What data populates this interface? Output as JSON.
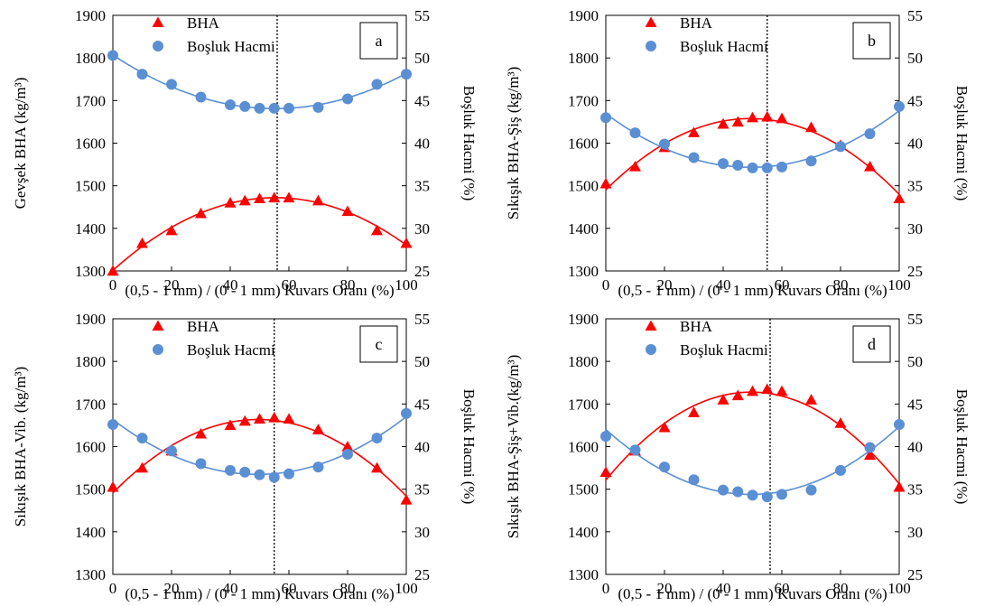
{
  "colors": {
    "bha": "#ff0000",
    "bosluk": "#5b8fd4",
    "axis": "#000000"
  },
  "chart_data": [
    {
      "type": "scatter",
      "panel_label": "a",
      "ylabel": "Gevşek BHA (kg/m³)",
      "y2label": "Boşluk Hacmi (%)",
      "xlabel": "(0,5 - 1 mm) / (0 - 1 mm) Kuvars Oranı (%)",
      "xlim": [
        0,
        100
      ],
      "ylim": [
        1300,
        1900
      ],
      "y2lim": [
        25,
        55
      ],
      "x_ticks": [
        "0",
        "20",
        "40",
        "60",
        "80",
        "100"
      ],
      "y_ticks": [
        "1300",
        "1400",
        "1500",
        "1600",
        "1700",
        "1800",
        "1900"
      ],
      "y2_ticks": [
        "25",
        "30",
        "35",
        "40",
        "45",
        "50",
        "55"
      ],
      "vline_x": 56,
      "series": [
        {
          "name": "BHA",
          "axis": "left",
          "marker": "triangle",
          "color": "#ff0000",
          "x": [
            0,
            10,
            20,
            30,
            40,
            45,
            50,
            55,
            60,
            70,
            80,
            90,
            100
          ],
          "y": [
            1300,
            1365,
            1395,
            1435,
            1460,
            1465,
            1470,
            1472,
            1472,
            1465,
            1440,
            1395,
            1365
          ]
        },
        {
          "name": "Boşluk Hacmi",
          "axis": "right",
          "marker": "circle",
          "color": "#5b8fd4",
          "x": [
            0,
            10,
            20,
            30,
            40,
            45,
            50,
            55,
            60,
            70,
            80,
            90,
            100
          ],
          "y": [
            50.3,
            48.1,
            46.9,
            45.4,
            44.5,
            44.3,
            44.1,
            44.1,
            44.1,
            44.2,
            45.2,
            46.9,
            48.1
          ]
        }
      ]
    },
    {
      "type": "scatter",
      "panel_label": "b",
      "ylabel": "Sıkışık BHA-Şiş (kg/m³)",
      "y2label": "Boşluk Hacmi (%)",
      "xlabel": "(0,5 - 1 mm) / (0 - 1 mm) Kuvars Oranı (%)",
      "xlim": [
        0,
        100
      ],
      "ylim": [
        1300,
        1900
      ],
      "y2lim": [
        25,
        55
      ],
      "x_ticks": [
        "0",
        "20",
        "40",
        "60",
        "80",
        "100"
      ],
      "y_ticks": [
        "1300",
        "1400",
        "1500",
        "1600",
        "1700",
        "1800",
        "1900"
      ],
      "y2_ticks": [
        "25",
        "30",
        "35",
        "40",
        "45",
        "50",
        "55"
      ],
      "vline_x": 55,
      "series": [
        {
          "name": "BHA",
          "axis": "left",
          "marker": "triangle",
          "color": "#ff0000",
          "x": [
            0,
            10,
            20,
            30,
            40,
            45,
            50,
            55,
            60,
            70,
            80,
            90,
            100
          ],
          "y": [
            1505,
            1545,
            1590,
            1625,
            1645,
            1650,
            1660,
            1662,
            1658,
            1637,
            1595,
            1545,
            1470
          ]
        },
        {
          "name": "Boşluk Hacmi",
          "axis": "right",
          "marker": "circle",
          "color": "#5b8fd4",
          "x": [
            0,
            10,
            20,
            30,
            40,
            45,
            50,
            55,
            60,
            70,
            80,
            90,
            100
          ],
          "y": [
            43.0,
            41.2,
            39.9,
            38.3,
            37.6,
            37.4,
            37.1,
            37.1,
            37.2,
            37.9,
            39.6,
            41.1,
            44.3
          ]
        }
      ]
    },
    {
      "type": "scatter",
      "panel_label": "c",
      "ylabel": "Sıkışık BHA-Vib. (kg/m³)",
      "y2label": "Boşluk Hacmi (%)",
      "xlabel": "(0,5 - 1 mm) / (0 - 1 mm) Kuvars Oranı (%)",
      "xlim": [
        0,
        100
      ],
      "ylim": [
        1300,
        1900
      ],
      "y2lim": [
        25,
        55
      ],
      "x_ticks": [
        "0",
        "20",
        "40",
        "60",
        "80",
        "100"
      ],
      "y_ticks": [
        "1300",
        "1400",
        "1500",
        "1600",
        "1700",
        "1800",
        "1900"
      ],
      "y2_ticks": [
        "25",
        "30",
        "35",
        "40",
        "45",
        "50",
        "55"
      ],
      "vline_x": 55,
      "series": [
        {
          "name": "BHA",
          "axis": "left",
          "marker": "triangle",
          "color": "#ff0000",
          "x": [
            0,
            10,
            20,
            30,
            40,
            45,
            50,
            55,
            60,
            70,
            80,
            90,
            100
          ],
          "y": [
            1505,
            1550,
            1590,
            1630,
            1650,
            1660,
            1665,
            1668,
            1665,
            1640,
            1600,
            1550,
            1475
          ]
        },
        {
          "name": "Boşluk Hacmi",
          "axis": "right",
          "marker": "circle",
          "color": "#5b8fd4",
          "x": [
            0,
            10,
            20,
            30,
            40,
            45,
            50,
            55,
            60,
            70,
            80,
            90,
            100
          ],
          "y": [
            42.6,
            41.0,
            39.5,
            38.0,
            37.2,
            37.0,
            36.7,
            36.4,
            36.8,
            37.6,
            39.1,
            41.0,
            43.9
          ]
        }
      ]
    },
    {
      "type": "scatter",
      "panel_label": "d",
      "ylabel": "Sıkışık BHA-Şiş+Vib.(kg/m³)",
      "y2label": "Boşluk Hacmi (%)",
      "xlabel": "(0,5 - 1 mm) / (0 - 1 mm) Kuvars Oranı (%)",
      "xlim": [
        0,
        100
      ],
      "ylim": [
        1300,
        1900
      ],
      "y2lim": [
        25,
        55
      ],
      "x_ticks": [
        "0",
        "20",
        "40",
        "60",
        "80",
        "100"
      ],
      "y_ticks": [
        "1300",
        "1400",
        "1500",
        "1600",
        "1700",
        "1800",
        "1900"
      ],
      "y2_ticks": [
        "25",
        "30",
        "35",
        "40",
        "45",
        "50",
        "55"
      ],
      "vline_x": 56,
      "series": [
        {
          "name": "BHA",
          "axis": "left",
          "marker": "triangle",
          "color": "#ff0000",
          "x": [
            0,
            10,
            20,
            30,
            40,
            45,
            50,
            55,
            60,
            70,
            80,
            90,
            100
          ],
          "y": [
            1540,
            1590,
            1645,
            1680,
            1710,
            1720,
            1730,
            1735,
            1730,
            1710,
            1655,
            1580,
            1505
          ]
        },
        {
          "name": "Boşluk Hacmi",
          "axis": "right",
          "marker": "circle",
          "color": "#5b8fd4",
          "x": [
            0,
            10,
            20,
            30,
            40,
            45,
            50,
            55,
            60,
            70,
            80,
            90,
            100
          ],
          "y": [
            41.2,
            39.6,
            37.6,
            36.1,
            34.9,
            34.7,
            34.3,
            34.1,
            34.4,
            34.9,
            37.2,
            39.9,
            42.6
          ]
        }
      ]
    }
  ]
}
